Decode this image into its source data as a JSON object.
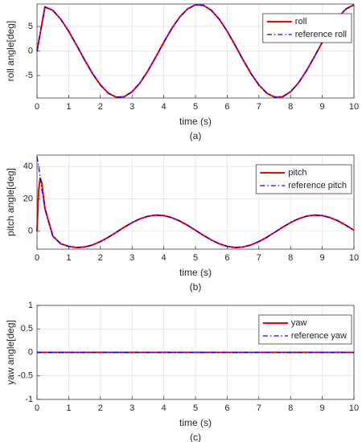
{
  "chart_data": [
    {
      "type": "line",
      "ylabel": "roll angle[deg]",
      "xlabel": "time (s)",
      "caption": "(a)",
      "x": [
        0,
        0.25,
        0.5,
        0.75,
        1,
        1.25,
        1.5,
        1.75,
        2,
        2.25,
        2.5,
        2.75,
        3,
        3.25,
        3.5,
        3.75,
        4,
        4.25,
        4.5,
        4.75,
        5,
        5.25,
        5.5,
        5.75,
        6,
        6.25,
        6.5,
        6.75,
        7,
        7.25,
        7.5,
        7.75,
        8,
        8.25,
        8.5,
        8.75,
        9,
        9.25,
        9.5,
        9.75,
        10
      ],
      "series": [
        {
          "name": "roll",
          "color": "#ff0000",
          "style": "solid",
          "values": [
            0,
            9.0,
            8.32,
            6.51,
            4.04,
            1.19,
            -1.78,
            -4.58,
            -6.92,
            -8.6,
            -9.43,
            -9.33,
            -8.32,
            -6.51,
            -4.04,
            -1.19,
            1.78,
            4.58,
            6.92,
            8.6,
            9.43,
            9.33,
            8.32,
            6.51,
            4.04,
            1.19,
            -1.78,
            -4.58,
            -6.92,
            -8.6,
            -9.43,
            -9.33,
            -8.32,
            -6.51,
            -4.04,
            -1.19,
            1.78,
            4.58,
            6.92,
            8.6,
            9.43
          ]
        },
        {
          "name": "reference roll",
          "color": "#0000ff",
          "style": "dashdot",
          "values": [
            0,
            9.0,
            8.32,
            6.51,
            4.04,
            1.19,
            -1.78,
            -4.58,
            -6.92,
            -8.6,
            -9.43,
            -9.33,
            -8.32,
            -6.51,
            -4.04,
            -1.19,
            1.78,
            4.58,
            6.92,
            8.6,
            9.43,
            9.33,
            8.32,
            6.51,
            4.04,
            1.19,
            -1.78,
            -4.58,
            -6.92,
            -8.6,
            -9.43,
            -9.33,
            -8.32,
            -6.51,
            -4.04,
            -1.19,
            1.78,
            4.58,
            6.92,
            8.6,
            9.43
          ]
        }
      ],
      "xlim": [
        0,
        10
      ],
      "xticks": [
        0,
        1,
        2,
        3,
        4,
        5,
        6,
        7,
        8,
        9,
        10
      ],
      "ylim": [
        -9.6,
        9.6
      ],
      "yticks": [
        -5,
        0,
        5
      ],
      "grid": true,
      "legend": "upper right"
    },
    {
      "type": "line",
      "ylabel": "pitch angle[deg]",
      "xlabel": "time (s)",
      "caption": "(b)",
      "x": [
        0,
        0.05,
        0.1,
        0.15,
        0.2,
        0.25,
        0.5,
        0.75,
        1,
        1.25,
        1.5,
        1.75,
        2,
        2.25,
        2.5,
        2.75,
        3,
        3.25,
        3.5,
        3.75,
        4,
        4.25,
        4.5,
        4.75,
        5,
        5.25,
        5.5,
        5.75,
        6,
        6.25,
        6.5,
        6.75,
        7,
        7.25,
        7.5,
        7.75,
        8,
        8.25,
        8.5,
        8.75,
        9,
        9.25,
        9.5,
        9.75,
        10
      ],
      "series": [
        {
          "name": "pitch",
          "color": "#ff0000",
          "style": "solid",
          "values": [
            0,
            25,
            33,
            30,
            22,
            14,
            -3,
            -7.71,
            -9.3,
            -9.98,
            -9.69,
            -8.44,
            -6.37,
            -3.68,
            -0.63,
            2.49,
            5.36,
            7.71,
            9.3,
            9.98,
            9.69,
            8.44,
            6.37,
            3.68,
            0.63,
            -2.49,
            -5.36,
            -7.71,
            -9.3,
            -9.98,
            -9.69,
            -8.44,
            -6.37,
            -3.68,
            -0.63,
            2.49,
            5.36,
            7.71,
            9.3,
            9.98,
            9.69,
            8.44,
            6.37,
            3.68,
            0.63
          ]
        },
        {
          "name": "reference pitch",
          "color": "#0000ff",
          "style": "dashdot",
          "values": [
            46,
            40,
            33,
            26,
            20,
            14,
            -3,
            -7.71,
            -9.3,
            -9.98,
            -9.69,
            -8.44,
            -6.37,
            -3.68,
            -0.63,
            2.49,
            5.36,
            7.71,
            9.3,
            9.98,
            9.69,
            8.44,
            6.37,
            3.68,
            0.63,
            -2.49,
            -5.36,
            -7.71,
            -9.3,
            -9.98,
            -9.69,
            -8.44,
            -6.37,
            -3.68,
            -0.63,
            2.49,
            5.36,
            7.71,
            9.3,
            9.98,
            9.69,
            8.44,
            6.37,
            3.68,
            0.63
          ]
        }
      ],
      "xlim": [
        0,
        10
      ],
      "xticks": [
        0,
        1,
        2,
        3,
        4,
        5,
        6,
        7,
        8,
        9,
        10
      ],
      "ylim": [
        -11,
        47
      ],
      "yticks": [
        0,
        20,
        40
      ],
      "grid": true,
      "legend": "upper right"
    },
    {
      "type": "line",
      "ylabel": "yaw angle[deg]",
      "xlabel": "time (s)",
      "caption": "(c)",
      "x": [
        0,
        10
      ],
      "series": [
        {
          "name": "yaw",
          "color": "#ff0000",
          "style": "solid",
          "values": [
            0,
            0
          ]
        },
        {
          "name": "reference yaw",
          "color": "#0000ff",
          "style": "dashdot",
          "values": [
            0,
            0
          ]
        }
      ],
      "xlim": [
        0,
        10
      ],
      "xticks": [
        0,
        1,
        2,
        3,
        4,
        5,
        6,
        7,
        8,
        9,
        10
      ],
      "ylim": [
        -1,
        1
      ],
      "yticks": [
        -1,
        -0.5,
        0,
        0.5,
        1
      ],
      "grid": true,
      "legend": "upper right"
    }
  ]
}
